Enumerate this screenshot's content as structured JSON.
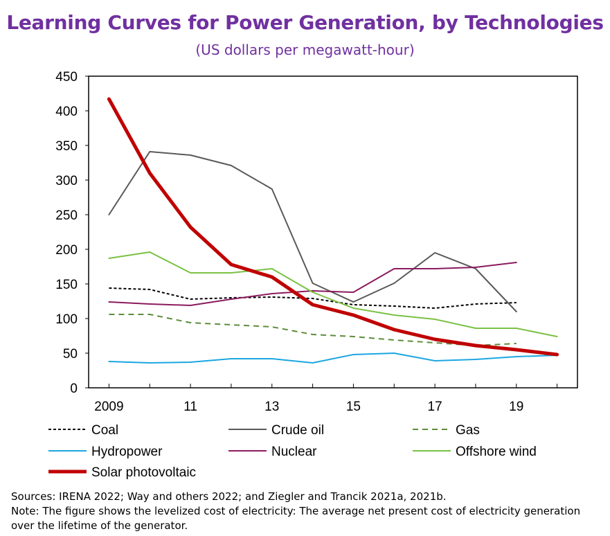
{
  "chart_data": {
    "type": "line",
    "title": "Learning Curves for Power Generation, by Technologies",
    "subtitle": "(US dollars per megawatt-hour)",
    "x": [
      2009,
      2010,
      2011,
      2012,
      2013,
      2014,
      2015,
      2016,
      2017,
      2018,
      2019,
      2020
    ],
    "x_tick_labels": [
      "2009",
      "11",
      "13",
      "15",
      "17",
      "19"
    ],
    "x_tick_values": [
      2009,
      2011,
      2013,
      2015,
      2017,
      2019
    ],
    "ylim": [
      0,
      450
    ],
    "y_ticks": [
      0,
      50,
      100,
      150,
      200,
      250,
      300,
      350,
      400,
      450
    ],
    "xlim": [
      2008.5,
      2020.5
    ],
    "grid": false,
    "legend_position": "bottom",
    "series": [
      {
        "name": "Coal",
        "color": "#000000",
        "style": "dotted",
        "width": 2,
        "values": [
          144,
          142,
          128,
          130,
          131,
          129,
          120,
          118,
          115,
          121,
          123,
          null
        ]
      },
      {
        "name": "Crude oil",
        "color": "#595959",
        "style": "solid",
        "width": 2,
        "values": [
          250,
          341,
          336,
          321,
          287,
          151,
          124,
          151,
          195,
          172,
          110,
          null
        ]
      },
      {
        "name": "Gas",
        "color": "#5b8c3a",
        "style": "dashed",
        "width": 2,
        "values": [
          106,
          106,
          94,
          91,
          88,
          77,
          74,
          69,
          65,
          61,
          64,
          null
        ]
      },
      {
        "name": "Hydropower",
        "color": "#1ba6e0",
        "style": "solid",
        "width": 2,
        "values": [
          38,
          36,
          37,
          42,
          42,
          36,
          48,
          50,
          39,
          41,
          45,
          47
        ]
      },
      {
        "name": "Nuclear",
        "color": "#8b1a5e",
        "style": "solid",
        "width": 2,
        "values": [
          124,
          121,
          119,
          128,
          136,
          140,
          138,
          172,
          172,
          174,
          181,
          null
        ]
      },
      {
        "name": "Offshore wind",
        "color": "#7ac143",
        "style": "solid",
        "width": 2,
        "values": [
          187,
          196,
          166,
          166,
          172,
          138,
          115,
          105,
          99,
          86,
          86,
          74
        ]
      },
      {
        "name": "Solar photovoltaic",
        "color": "#c00000",
        "style": "solid",
        "width": 5,
        "values": [
          417,
          310,
          232,
          178,
          160,
          120,
          105,
          84,
          70,
          61,
          55,
          48
        ]
      }
    ]
  },
  "notes": {
    "sources": "Sources: IRENA 2022; Way and others 2022; and Ziegler and Trancik 2021a, 2021b.",
    "note": "Note: The figure shows the levelized cost of electricity: The average net present cost of electricity generation over the lifetime of the generator."
  }
}
